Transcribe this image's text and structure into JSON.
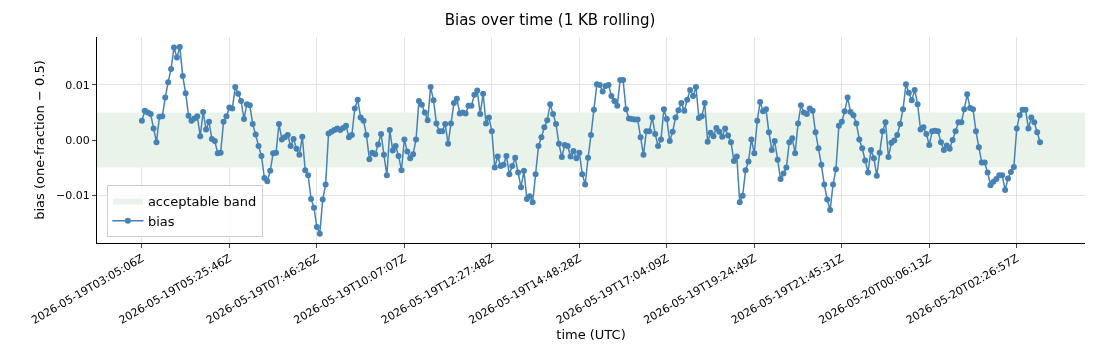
{
  "chart_data": {
    "type": "line",
    "title": "Bias over time (1 KB rolling)",
    "xlabel": "time (UTC)",
    "ylabel": "bias (one-fraction − 0.5)",
    "categories": [
      "2026-05-19T03:05:06Z",
      null,
      null,
      null,
      null,
      null,
      null,
      null,
      null,
      null,
      null,
      null,
      null,
      null,
      null,
      null,
      null,
      null,
      null,
      null,
      null,
      null,
      null,
      null,
      null,
      null,
      null,
      null,
      null,
      null,
      "2026-05-19T05:25:46Z",
      null,
      null,
      null,
      null,
      null,
      null,
      null,
      null,
      null,
      null,
      null,
      null,
      null,
      null,
      null,
      null,
      null,
      null,
      null,
      null,
      null,
      null,
      null,
      null,
      null,
      null,
      null,
      null,
      null,
      "2026-05-19T07:46:26Z",
      null,
      null,
      null,
      null,
      null,
      null,
      null,
      null,
      null,
      null,
      null,
      null,
      null,
      null,
      null,
      null,
      null,
      null,
      null,
      null,
      null,
      null,
      null,
      null,
      null,
      null,
      null,
      null,
      null,
      "2026-05-19T10:07:07Z",
      null,
      null,
      null,
      null,
      null,
      null,
      null,
      null,
      null,
      null,
      null,
      null,
      null,
      null,
      null,
      null,
      null,
      null,
      null,
      null,
      null,
      null,
      null,
      null,
      null,
      null,
      null,
      null,
      null,
      "2026-05-19T12:27:48Z",
      null,
      null,
      null,
      null,
      null,
      null,
      null,
      null,
      null,
      null,
      null,
      null,
      null,
      null,
      null,
      null,
      null,
      null,
      null,
      null,
      null,
      null,
      null,
      null,
      null,
      null,
      null,
      null,
      null,
      "2026-05-19T14:48:28Z",
      null,
      null,
      null,
      null,
      null,
      null,
      null,
      null,
      null,
      null,
      null,
      null,
      null,
      null,
      null,
      null,
      null,
      null,
      null,
      null,
      null,
      null,
      null,
      null,
      null,
      null,
      null,
      null,
      null,
      "2026-05-19T17:04:09Z",
      null,
      null,
      null,
      null,
      null,
      null,
      null,
      null,
      null,
      null,
      null,
      null,
      null,
      null,
      null,
      null,
      null,
      null,
      null,
      null,
      null,
      null,
      null,
      null,
      null,
      null,
      null,
      null,
      null,
      "2026-05-19T19:24:49Z",
      null,
      null,
      null,
      null,
      null,
      null,
      null,
      null,
      null,
      null,
      null,
      null,
      null,
      null,
      null,
      null,
      null,
      null,
      null,
      null,
      null,
      null,
      null,
      null,
      null,
      null,
      null,
      null,
      null,
      "2026-05-19T21:45:31Z",
      null,
      null,
      null,
      null,
      null,
      null,
      null,
      null,
      null,
      null,
      null,
      null,
      null,
      null,
      null,
      null,
      null,
      null,
      null,
      null,
      null,
      null,
      null,
      null,
      null,
      null,
      null,
      null,
      null,
      "2026-05-20T00:06:13Z",
      null,
      null,
      null,
      null,
      null,
      null,
      null,
      null,
      null,
      null,
      null,
      null,
      null,
      null,
      null,
      null,
      null,
      null,
      null,
      null,
      null,
      null,
      null,
      null,
      null,
      null,
      null,
      null,
      null,
      "2026-05-20T02:26:57Z",
      null,
      null,
      null,
      null,
      null,
      null,
      null,
      null
    ],
    "ylim": [
      -0.0187,
      0.0187
    ],
    "yticks": [
      {
        "value": -0.01,
        "label": "−0.01"
      },
      {
        "value": 0,
        "label": "0.00"
      },
      {
        "value": 0.01,
        "label": "0.01"
      }
    ],
    "grid": true,
    "legend": "bottom left",
    "marker": "circle",
    "line_style": "solid",
    "bands": [
      {
        "axis": "y",
        "from": -0.005,
        "to": 0.005,
        "label": "acceptable band",
        "color": "#e9f3e9"
      }
    ],
    "series": [
      {
        "name": "bias",
        "color": "#4682b4",
        "values": [
          0.0035,
          0.0053,
          0.005,
          0.0047,
          0.0021,
          -0.0004,
          0.0042,
          0.0043,
          0.0077,
          0.0105,
          0.0129,
          0.0168,
          0.015,
          0.0169,
          0.0116,
          0.0085,
          0.0044,
          0.0035,
          0.0039,
          0.0043,
          0.0007,
          0.0051,
          0.0019,
          0.0033,
          0.0002,
          -0.0002,
          -0.0024,
          -0.0023,
          0.0033,
          0.0043,
          0.0059,
          0.0057,
          0.0096,
          0.0084,
          0.0071,
          0.0038,
          0.0065,
          0.0063,
          0.0029,
          0.001,
          -0.0011,
          -0.0029,
          -0.0069,
          -0.0075,
          -0.0056,
          -0.0024,
          -0.0023,
          0.0029,
          0.0001,
          0.0005,
          0.0009,
          -0.0011,
          0.0002,
          -0.0016,
          -0.0027,
          0.0006,
          -0.0055,
          -0.0064,
          -0.0107,
          -0.0123,
          -0.0158,
          -0.017,
          -0.0108,
          -0.0081,
          0.0012,
          0.0015,
          0.0018,
          0.0021,
          0.0018,
          0.0022,
          0.0026,
          0.0005,
          0.0009,
          0.0057,
          0.0073,
          0.0041,
          0.0035,
          0.0009,
          -0.0035,
          -0.0023,
          -0.0026,
          -0.0008,
          0.0011,
          -0.0027,
          -0.0064,
          0.0018,
          -0.0019,
          -0.0011,
          -0.0029,
          -0.0055,
          0.0001,
          -0.0021,
          -0.0033,
          -0.0026,
          0.0001,
          0.0071,
          0.0064,
          0.005,
          0.0036,
          0.0096,
          0.0072,
          0.003,
          0.0016,
          0.0016,
          0.0029,
          -0.0007,
          0.003,
          0.0067,
          0.0075,
          0.0048,
          0.005,
          0.0048,
          0.0062,
          0.0062,
          0.0082,
          0.009,
          0.0047,
          0.0084,
          0.003,
          0.0041,
          0.0016,
          -0.005,
          -0.003,
          -0.0047,
          -0.0045,
          -0.0029,
          -0.0062,
          -0.0047,
          -0.0032,
          -0.0059,
          -0.0086,
          -0.0056,
          -0.0107,
          -0.0102,
          -0.0113,
          -0.0062,
          -0.0011,
          0.0005,
          0.0023,
          0.0036,
          0.0065,
          0.0047,
          0.0029,
          -0.0007,
          -0.0031,
          -0.0009,
          -0.0011,
          -0.003,
          -0.002,
          -0.0033,
          -0.0023,
          -0.0062,
          -0.0081,
          -0.0032,
          0.0009,
          0.0055,
          0.0101,
          0.01,
          0.0088,
          0.0098,
          0.01,
          0.008,
          0.0071,
          0.0062,
          0.0109,
          0.0109,
          0.0056,
          0.0039,
          0.0038,
          0.0037,
          0.0037,
          0.0005,
          -0.0027,
          0.0016,
          0.0016,
          0.0041,
          0.0011,
          -0.0011,
          0.0001,
          0.0056,
          0.0038,
          -0.0002,
          0.0015,
          0.0041,
          0.0054,
          0.0067,
          0.0053,
          0.0073,
          0.0091,
          0.008,
          0.0096,
          0.004,
          0.0043,
          0.0067,
          -0.0003,
          0.0013,
          0.0007,
          0.0022,
          0.0015,
          0.0006,
          0.0021,
          0.0008,
          -0.0004,
          -0.0038,
          -0.003,
          -0.0113,
          -0.0101,
          -0.0055,
          -0.0039,
          0.0001,
          -0.0024,
          0.0035,
          0.0069,
          0.0052,
          0.0056,
          0.0014,
          -0.0018,
          -0.0002,
          -0.0036,
          -0.0071,
          -0.0061,
          -0.005,
          -0.0004,
          0.0003,
          -0.0024,
          0.003,
          0.0063,
          0.005,
          0.0047,
          0.0057,
          0.0053,
          0.0014,
          -0.0015,
          -0.0045,
          -0.0081,
          -0.0108,
          -0.0127,
          -0.0081,
          -0.0053,
          0.0026,
          0.0033,
          0.0052,
          0.0077,
          0.0051,
          0.0045,
          0.003,
          0.0001,
          -0.0015,
          -0.0037,
          -0.0059,
          -0.0018,
          -0.0033,
          -0.0065,
          -0.0023,
          0.0016,
          0.0032,
          -0.0031,
          -0.0005,
          -0.0001,
          0.0009,
          0.0029,
          0.0056,
          0.0101,
          0.0086,
          0.0072,
          0.0091,
          0.0065,
          0.0019,
          0.0023,
          0.0011,
          -0.0009,
          0.0016,
          0.0017,
          0.0016,
          -0.0004,
          -0.0018,
          -0.001,
          -0.0016,
          0,
          0.0016,
          0.0032,
          0.0032,
          0.0056,
          0.0083,
          0.0058,
          0.0056,
          0.0016,
          -0.0013,
          -0.0041,
          -0.0041,
          -0.0059,
          -0.0082,
          -0.0076,
          -0.0071,
          -0.0064,
          -0.0064,
          -0.0091,
          -0.007,
          -0.0058,
          -0.0049,
          0.0021,
          0.0045,
          0.0055,
          0.0055,
          0.0021,
          0.0041,
          0.0032,
          0.0014,
          -0.0004
        ]
      }
    ]
  }
}
